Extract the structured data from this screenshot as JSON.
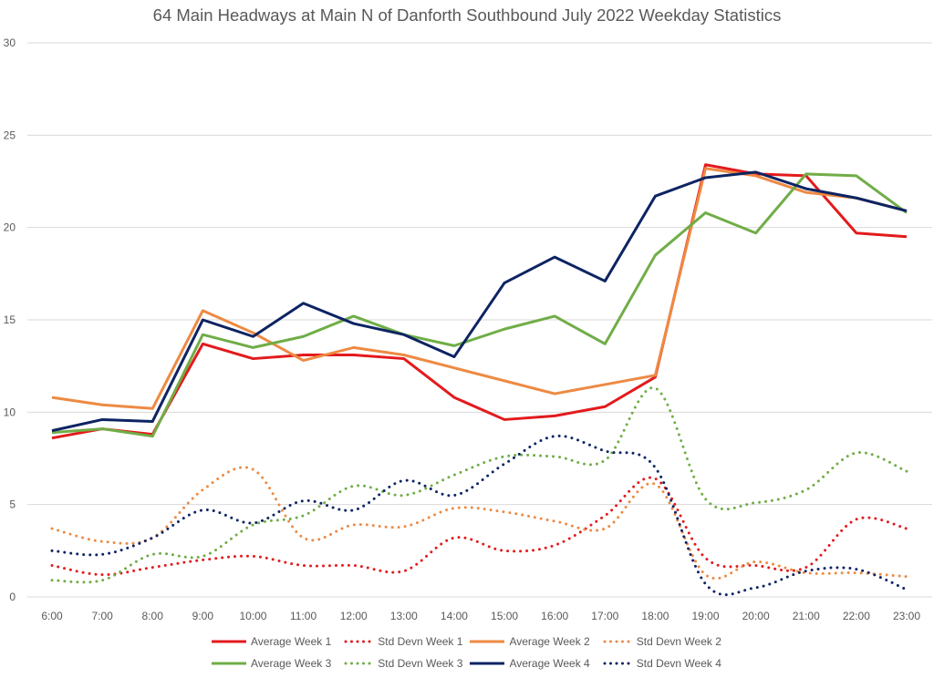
{
  "chart_data": {
    "type": "line",
    "title": "64 Main Headways at Main N of Danforth Southbound July 2022 Weekday Statistics",
    "xlabel": "",
    "ylabel": "",
    "ylim": [
      0,
      30
    ],
    "yticks": [
      "0",
      "5",
      "10",
      "15",
      "20",
      "25",
      "30"
    ],
    "ytick_values": [
      0,
      5,
      10,
      15,
      20,
      25,
      30
    ],
    "grid": true,
    "legend_position": "bottom",
    "categories": [
      "6:00",
      "7:00",
      "8:00",
      "9:00",
      "10:00",
      "11:00",
      "12:00",
      "13:00",
      "14:00",
      "15:00",
      "16:00",
      "17:00",
      "18:00",
      "19:00",
      "20:00",
      "21:00",
      "22:00",
      "23:00"
    ],
    "series": [
      {
        "name": "Average Week 1",
        "color": "#e31a1c",
        "style": "solid",
        "values": [
          8.6,
          9.1,
          8.8,
          13.7,
          12.9,
          13.1,
          13.1,
          12.9,
          10.8,
          9.6,
          9.8,
          10.3,
          11.9,
          23.4,
          22.9,
          22.8,
          19.7,
          19.5
        ]
      },
      {
        "name": "Std Devn Week 1",
        "color": "#e31a1c",
        "style": "dotted",
        "values": [
          1.7,
          1.2,
          1.6,
          2.0,
          2.2,
          1.7,
          1.7,
          1.4,
          3.2,
          2.5,
          2.8,
          4.4,
          6.4,
          2.1,
          1.7,
          1.6,
          4.2,
          3.7
        ]
      },
      {
        "name": "Average Week 2",
        "color": "#ed8a43",
        "style": "solid",
        "values": [
          10.8,
          10.4,
          10.2,
          15.5,
          14.3,
          12.8,
          13.5,
          13.1,
          12.4,
          11.7,
          11.0,
          11.5,
          12.0,
          23.2,
          22.8,
          21.9,
          21.6,
          20.9
        ]
      },
      {
        "name": "Std Devn Week 2",
        "color": "#ed8a43",
        "style": "dotted",
        "values": [
          3.7,
          3.0,
          3.2,
          5.8,
          6.9,
          3.2,
          3.9,
          3.8,
          4.8,
          4.6,
          4.1,
          3.7,
          6.1,
          1.2,
          1.9,
          1.3,
          1.3,
          1.1
        ]
      },
      {
        "name": "Average Week 3",
        "color": "#70ad47",
        "style": "solid",
        "values": [
          8.9,
          9.1,
          8.7,
          14.2,
          13.5,
          14.1,
          15.2,
          14.2,
          13.6,
          14.5,
          15.2,
          13.7,
          18.5,
          20.8,
          19.7,
          22.9,
          22.8,
          20.8
        ]
      },
      {
        "name": "Std Devn Week 3",
        "color": "#70ad47",
        "style": "dotted",
        "values": [
          0.9,
          0.9,
          2.3,
          2.2,
          3.9,
          4.4,
          6.0,
          5.5,
          6.6,
          7.6,
          7.6,
          7.4,
          11.3,
          5.3,
          5.1,
          5.8,
          7.8,
          6.8
        ]
      },
      {
        "name": "Average Week 4",
        "color": "#0d2463",
        "style": "solid",
        "values": [
          9.0,
          9.6,
          9.5,
          15.0,
          14.1,
          15.9,
          14.8,
          14.2,
          13.0,
          17.0,
          18.4,
          17.1,
          21.7,
          22.7,
          23.0,
          22.1,
          21.6,
          20.9
        ]
      },
      {
        "name": "Std Devn Week 4",
        "color": "#0d2463",
        "style": "dotted",
        "values": [
          2.5,
          2.3,
          3.2,
          4.7,
          4.0,
          5.2,
          4.7,
          6.3,
          5.5,
          7.2,
          8.7,
          7.9,
          7.0,
          0.7,
          0.5,
          1.4,
          1.5,
          0.4
        ]
      }
    ]
  }
}
